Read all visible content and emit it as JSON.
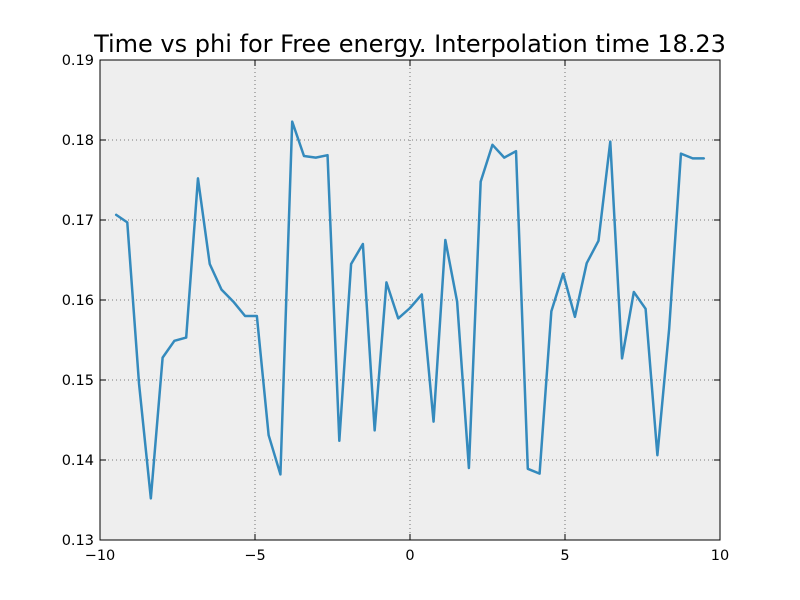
{
  "chart_data": {
    "type": "line",
    "title": "Time vs phi for Free energy. Interpolation time 18.23",
    "xlabel": "",
    "ylabel": "",
    "xlim": [
      -10,
      10
    ],
    "ylim": [
      0.13,
      0.19
    ],
    "xticks": [
      -10,
      -5,
      0,
      5,
      10
    ],
    "xtick_labels": [
      "−10",
      "−5",
      "0",
      "5",
      "10"
    ],
    "yticks": [
      0.13,
      0.14,
      0.15,
      0.16,
      0.17,
      0.18,
      0.19
    ],
    "ytick_labels": [
      "0.13",
      "0.14",
      "0.15",
      "0.16",
      "0.17",
      "0.18",
      "0.19"
    ],
    "grid": true,
    "legend": "none",
    "colors": {
      "line": "#348abd",
      "plot_background": "#eeeeee",
      "grid": "#555555",
      "frame": "#000000"
    },
    "series": [
      {
        "x": [
          -9.5,
          -9.12,
          -8.74,
          -8.36,
          -7.98,
          -7.6,
          -7.22,
          -6.84,
          -6.46,
          -6.08,
          -5.7,
          -5.32,
          -4.94,
          -4.56,
          -4.18,
          -3.8,
          -3.42,
          -3.04,
          -2.66,
          -2.28,
          -1.9,
          -1.52,
          -1.14,
          -0.76,
          -0.38,
          0.0,
          0.38,
          0.76,
          1.14,
          1.52,
          1.9,
          2.28,
          2.66,
          3.04,
          3.42,
          3.8,
          4.18,
          4.56,
          4.94,
          5.32,
          5.7,
          6.08,
          6.46,
          6.84,
          7.22,
          7.6,
          7.98,
          8.36,
          8.74,
          9.12,
          9.5
        ],
        "values": [
          0.1707,
          0.1697,
          0.1495,
          0.1352,
          0.1528,
          0.1549,
          0.1553,
          0.1752,
          0.1645,
          0.1613,
          0.1598,
          0.158,
          0.158,
          0.1431,
          0.1382,
          0.1823,
          0.178,
          0.1778,
          0.1781,
          0.1424,
          0.1645,
          0.167,
          0.1437,
          0.1622,
          0.1577,
          0.159,
          0.1607,
          0.1448,
          0.1675,
          0.1598,
          0.139,
          0.1748,
          0.1794,
          0.1778,
          0.1786,
          0.1389,
          0.1383,
          0.1586,
          0.1633,
          0.1579,
          0.1646,
          0.1674,
          0.1798,
          0.1527,
          0.161,
          0.1589,
          0.1406,
          0.1564,
          0.1783,
          0.1777,
          0.1777
        ]
      }
    ]
  }
}
